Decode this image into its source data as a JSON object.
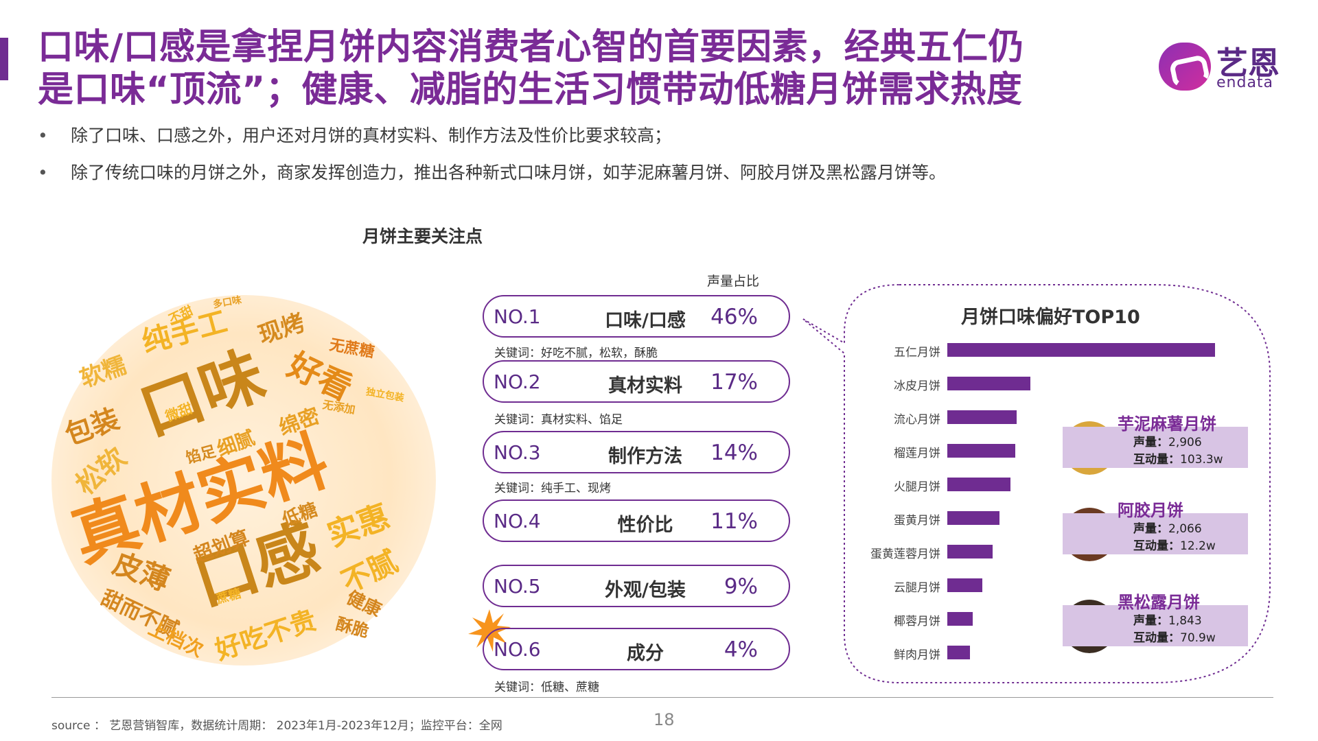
{
  "header": {
    "title_line1": "口味/口感是拿捏月饼内容消费者心智的首要因素，经典五仁仍",
    "title_line2": "是口味“顶流”；健康、减脂的生活习惯带动低糖月饼需求热度",
    "logo_cn": "艺恩",
    "logo_en": "endata"
  },
  "bullets": [
    "除了口味、口感之外，用户还对月饼的真材实料、制作方法及性价比要求较高；",
    "除了传统口味的月饼之外，商家发挥创造力，推出各种新式口味月饼，如芋泥麻薯月饼、阿胶月饼及黑松露月饼等。"
  ],
  "section_title": "月饼主要关注点",
  "word_cloud": [
    {
      "text": "真材实料",
      "color": "#f08a1c"
    },
    {
      "text": "口味",
      "color": "#c9861a"
    },
    {
      "text": "口感",
      "color": "#c9861a"
    },
    {
      "text": "纯手工",
      "color": "#f3b325"
    },
    {
      "text": "现烤",
      "color": "#d58a1f"
    },
    {
      "text": "好看",
      "color": "#e48a18"
    },
    {
      "text": "软糯",
      "color": "#f0b53a"
    },
    {
      "text": "包装",
      "color": "#d4861e"
    },
    {
      "text": "松软",
      "color": "#f0b53a"
    },
    {
      "text": "绵密",
      "color": "#e8a024"
    },
    {
      "text": "实惠",
      "color": "#f3b325"
    },
    {
      "text": "不腻",
      "color": "#f3b325"
    },
    {
      "text": "皮薄",
      "color": "#d4861e"
    },
    {
      "text": "甜而不腻",
      "color": "#d4861e"
    },
    {
      "text": "好吃不贵",
      "color": "#f3b325"
    },
    {
      "text": "超划算",
      "color": "#d4861e"
    },
    {
      "text": "低糖",
      "color": "#d58a1f"
    },
    {
      "text": "细腻",
      "color": "#e8a024"
    },
    {
      "text": "馅足",
      "color": "#d58a1f"
    },
    {
      "text": "微甜",
      "color": "#f3b325"
    },
    {
      "text": "无蔗糖",
      "color": "#e07a1a"
    },
    {
      "text": "无添加",
      "color": "#e8a024"
    },
    {
      "text": "独立包装",
      "color": "#f3b325"
    },
    {
      "text": "不甜",
      "color": "#f3b325"
    },
    {
      "text": "多口味",
      "color": "#e8a024"
    },
    {
      "text": "健康",
      "color": "#d4861e"
    },
    {
      "text": "酥脆",
      "color": "#d4861e"
    },
    {
      "text": "上档次",
      "color": "#f0a020"
    },
    {
      "text": "蔗糖",
      "color": "#f3b325"
    }
  ],
  "ranking": {
    "share_header": "声量占比",
    "items": [
      {
        "no": "NO.1",
        "name": "口味/口感",
        "pct": "46%",
        "keywords": "关键词：好吃不腻，松软，酥脆"
      },
      {
        "no": "NO.2",
        "name": "真材实料",
        "pct": "17%",
        "keywords": "关键词：真材实料、馅足"
      },
      {
        "no": "NO.3",
        "name": "制作方法",
        "pct": "14%",
        "keywords": "关键词：纯手工、现烤"
      },
      {
        "no": "NO.4",
        "name": "性价比",
        "pct": "11%",
        "keywords": ""
      },
      {
        "no": "NO.5",
        "name": "外观/包装",
        "pct": "9%",
        "keywords": ""
      },
      {
        "no": "NO.6",
        "name": "成分",
        "pct": "4%",
        "keywords": "关键词：低糖、蔗糖"
      }
    ]
  },
  "chart_data": {
    "type": "bar",
    "title": "月饼口味偏好TOP10",
    "orientation": "horizontal",
    "categories": [
      "五仁月饼",
      "冰皮月饼",
      "流心月饼",
      "榴莲月饼",
      "火腿月饼",
      "蛋黄月饼",
      "蛋黄莲蓉月饼",
      "云腿月饼",
      "椰蓉月饼",
      "鲜肉月饼"
    ],
    "values": [
      100,
      31,
      26,
      25.5,
      23.5,
      19.5,
      17,
      13,
      9.5,
      8.5
    ],
    "bar_color": "#6f2c91",
    "xlabel": "",
    "ylabel": ""
  },
  "highlights": [
    {
      "name": "芋泥麻薯月饼",
      "volume_label": "声量：",
      "volume": "2,906",
      "interact_label": "互动量：",
      "interact": "103.3w"
    },
    {
      "name": "阿胶月饼",
      "volume_label": "声量：",
      "volume": "2,066",
      "interact_label": "互动量：",
      "interact": "12.2w"
    },
    {
      "name": "黑松露月饼",
      "volume_label": "声量：",
      "volume": "1,843",
      "interact_label": "互动量：",
      "interact": "70.9w"
    }
  ],
  "footer": {
    "source": "source ： 艺恩营销智库，数据统计周期： 2023年1月-2023年12月；监控平台：全网",
    "page": "18"
  }
}
